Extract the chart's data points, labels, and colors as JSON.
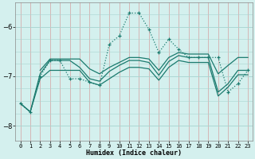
{
  "xlabel": "Humidex (Indice chaleur)",
  "background_color": "#d4f0ee",
  "grid_color_v": "#d4a0a0",
  "grid_color_h": "#a8d4d0",
  "line_color": "#1a7a6e",
  "xlim": [
    -0.5,
    23.5
  ],
  "ylim": [
    -8.3,
    -5.5
  ],
  "yticks": [
    -8,
    -7,
    -6
  ],
  "xticks": [
    0,
    1,
    2,
    3,
    4,
    5,
    6,
    7,
    8,
    9,
    10,
    11,
    12,
    13,
    14,
    15,
    16,
    17,
    18,
    19,
    20,
    21,
    22,
    23
  ],
  "line1_x": [
    0,
    1,
    2,
    3,
    4,
    5,
    6,
    7,
    8,
    9,
    10,
    11,
    12,
    13,
    14,
    15,
    16,
    17,
    18,
    19,
    20,
    21,
    22,
    23
  ],
  "line1_y": [
    -7.55,
    -7.72,
    -6.95,
    -6.68,
    -6.68,
    -6.68,
    -6.82,
    -7.05,
    -7.1,
    -6.9,
    -6.78,
    -6.68,
    -6.68,
    -6.72,
    -6.98,
    -6.7,
    -6.58,
    -6.62,
    -6.62,
    -6.62,
    -7.32,
    -7.15,
    -6.88,
    -6.88
  ],
  "line2_x": [
    2,
    3,
    4,
    5,
    6,
    7,
    8,
    9,
    10,
    11,
    12,
    13,
    14,
    15,
    16,
    17,
    18,
    19,
    20,
    21,
    22,
    23
  ],
  "line2_y": [
    -6.88,
    -6.65,
    -6.65,
    -6.65,
    -6.65,
    -6.85,
    -6.95,
    -6.82,
    -6.72,
    -6.62,
    -6.62,
    -6.65,
    -6.88,
    -6.62,
    -6.52,
    -6.55,
    -6.55,
    -6.55,
    -6.95,
    -6.78,
    -6.62,
    -6.62
  ],
  "line3_x": [
    0,
    1,
    2,
    3,
    4,
    5,
    6,
    7,
    8,
    9,
    10,
    11,
    12,
    13,
    14,
    15,
    16,
    17,
    18,
    19,
    20,
    21,
    22,
    23
  ],
  "line3_y": [
    -7.55,
    -7.72,
    -7.05,
    -6.88,
    -6.88,
    -6.88,
    -6.88,
    -7.12,
    -7.18,
    -7.05,
    -6.92,
    -6.82,
    -6.82,
    -6.85,
    -7.08,
    -6.82,
    -6.68,
    -6.72,
    -6.72,
    -6.72,
    -7.4,
    -7.22,
    -6.97,
    -6.97
  ],
  "curve_main_x": [
    0,
    1,
    2,
    3,
    4,
    5,
    6,
    7,
    8,
    9,
    10,
    11,
    12,
    13,
    14,
    15,
    16,
    17,
    18,
    19,
    20,
    21,
    22,
    23
  ],
  "curve_main_y": [
    -7.55,
    -7.73,
    -7.0,
    -6.68,
    -6.68,
    -7.05,
    -7.05,
    -7.12,
    -7.18,
    -6.35,
    -6.18,
    -5.72,
    -5.72,
    -6.05,
    -6.52,
    -6.25,
    -6.45,
    -6.62,
    -6.62,
    -6.62,
    -6.62,
    -7.32,
    -7.15,
    -6.88
  ]
}
